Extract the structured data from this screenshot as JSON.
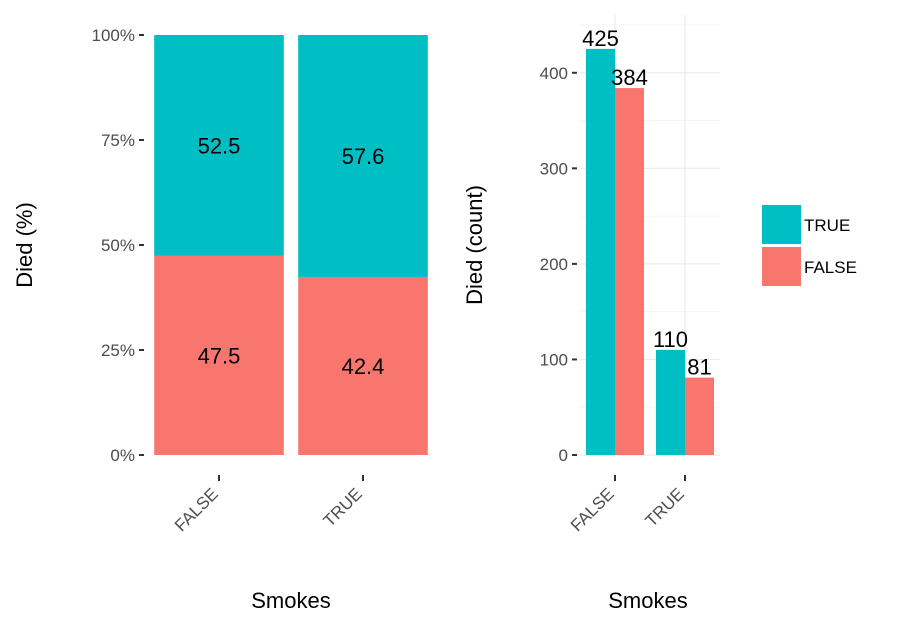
{
  "colors": {
    "TRUE": "#00BFC4",
    "FALSE": "#F8766D"
  },
  "chart_data": [
    {
      "type": "bar",
      "stacked": true,
      "categories": [
        "FALSE",
        "TRUE"
      ],
      "series": [
        {
          "name": "TRUE",
          "values": [
            52.5,
            57.6
          ]
        },
        {
          "name": "FALSE",
          "values": [
            47.5,
            42.4
          ]
        }
      ],
      "data_labels": {
        "TRUE": [
          "52.5",
          "57.6"
        ],
        "FALSE": [
          "47.5",
          "42.4"
        ]
      },
      "xlabel": "Smokes",
      "ylabel": "Died  (%)",
      "ylim": [
        0,
        100
      ],
      "yticks": [
        0,
        25,
        50,
        75,
        100
      ],
      "ytick_labels": [
        "0%",
        "25%",
        "50%",
        "75%",
        "100%"
      ],
      "grid": false
    },
    {
      "type": "bar",
      "stacked": false,
      "categories": [
        "FALSE",
        "TRUE"
      ],
      "series": [
        {
          "name": "TRUE",
          "values": [
            425,
            110
          ]
        },
        {
          "name": "FALSE",
          "values": [
            384,
            81
          ]
        }
      ],
      "data_labels": {
        "TRUE": [
          "425",
          "110"
        ],
        "FALSE": [
          "384",
          "81"
        ]
      },
      "xlabel": "Smokes",
      "ylabel": "Died  (count)",
      "ylim": [
        0,
        450
      ],
      "yticks": [
        0,
        100,
        200,
        300,
        400
      ],
      "ytick_labels": [
        "0",
        "100",
        "200",
        "300",
        "400"
      ],
      "grid": true
    }
  ],
  "legend": {
    "position": "right",
    "items": [
      {
        "key": "TRUE",
        "label": "TRUE"
      },
      {
        "key": "FALSE",
        "label": "FALSE"
      }
    ]
  }
}
